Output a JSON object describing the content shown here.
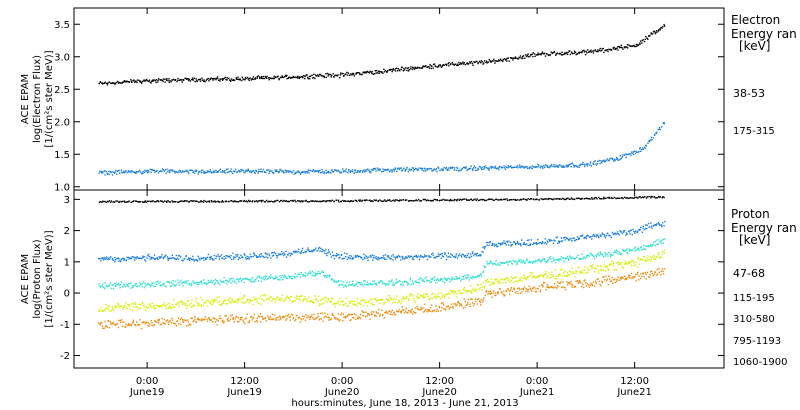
{
  "chart_data": [
    {
      "type": "scatter",
      "panel": "electron",
      "ylabel": [
        "ACE EPAM",
        "log(Electron Flux)",
        "[1/(cm²s ster MeV)]"
      ],
      "ylim": [
        0.95,
        3.75
      ],
      "yticks": [
        "1.0",
        "1.5",
        "2.0",
        "2.5",
        "3.0",
        "3.5"
      ],
      "legend_title": [
        "Electron",
        "Energy ran",
        "[keV]"
      ],
      "series": [
        {
          "name": "38-53",
          "color": "#000000",
          "points": [
            [
              -6,
              2.6
            ],
            [
              0,
              2.64
            ],
            [
              6,
              2.66
            ],
            [
              12,
              2.67
            ],
            [
              18,
              2.7
            ],
            [
              24,
              2.73
            ],
            [
              30,
              2.8
            ],
            [
              36,
              2.88
            ],
            [
              42,
              2.93
            ],
            [
              48,
              3.05
            ],
            [
              54,
              3.08
            ],
            [
              60,
              3.18
            ],
            [
              62,
              3.35
            ],
            [
              63.7,
              3.5
            ]
          ]
        },
        {
          "name": "175-315",
          "color": "#1a7fdc",
          "points": [
            [
              -6,
              1.22
            ],
            [
              0,
              1.25
            ],
            [
              6,
              1.24
            ],
            [
              12,
              1.25
            ],
            [
              18,
              1.24
            ],
            [
              24,
              1.25
            ],
            [
              30,
              1.27
            ],
            [
              36,
              1.28
            ],
            [
              42,
              1.3
            ],
            [
              48,
              1.32
            ],
            [
              54,
              1.35
            ],
            [
              58,
              1.45
            ],
            [
              61,
              1.6
            ],
            [
              63.7,
              2.0
            ]
          ]
        }
      ]
    },
    {
      "type": "scatter",
      "panel": "proton",
      "ylabel": [
        "ACE EPAM",
        "log(Proton Flux)",
        "[1/(cm²s ster MeV)]"
      ],
      "ylim": [
        -2.4,
        3.3
      ],
      "yticks": [
        "-2",
        "-1",
        "0",
        "1",
        "2",
        "3"
      ],
      "legend_title": [
        "Proton",
        "Energy ran",
        "[keV]"
      ],
      "series": [
        {
          "name": "47-68",
          "color": "#000000",
          "points": [
            [
              -6,
              2.95
            ],
            [
              12,
              2.96
            ],
            [
              24,
              2.97
            ],
            [
              36,
              3.0
            ],
            [
              48,
              3.02
            ],
            [
              63.7,
              3.1
            ]
          ]
        },
        {
          "name": "115-195",
          "color": "#1a7fdc",
          "points": [
            [
              -6,
              1.1
            ],
            [
              0,
              1.15
            ],
            [
              6,
              1.15
            ],
            [
              12,
              1.2
            ],
            [
              18,
              1.3
            ],
            [
              21,
              1.45
            ],
            [
              23,
              1.2
            ],
            [
              30,
              1.15
            ],
            [
              36,
              1.2
            ],
            [
              41,
              1.25
            ],
            [
              41.5,
              1.55
            ],
            [
              48,
              1.65
            ],
            [
              54,
              1.8
            ],
            [
              60,
              2.0
            ],
            [
              63.7,
              2.3
            ]
          ]
        },
        {
          "name": "310-580",
          "color": "#2ee0d0",
          "points": [
            [
              -6,
              0.25
            ],
            [
              0,
              0.3
            ],
            [
              6,
              0.35
            ],
            [
              12,
              0.45
            ],
            [
              18,
              0.55
            ],
            [
              21,
              0.7
            ],
            [
              24,
              0.3
            ],
            [
              30,
              0.35
            ],
            [
              36,
              0.45
            ],
            [
              41,
              0.55
            ],
            [
              41.5,
              0.95
            ],
            [
              48,
              1.05
            ],
            [
              54,
              1.2
            ],
            [
              60,
              1.4
            ],
            [
              63.7,
              1.7
            ]
          ]
        },
        {
          "name": "795-1193",
          "color": "#d4ee00",
          "points": [
            [
              -6,
              -0.45
            ],
            [
              0,
              -0.4
            ],
            [
              6,
              -0.3
            ],
            [
              12,
              -0.2
            ],
            [
              18,
              -0.15
            ],
            [
              24,
              -0.3
            ],
            [
              30,
              -0.2
            ],
            [
              36,
              -0.05
            ],
            [
              41,
              0.15
            ],
            [
              41.5,
              0.35
            ],
            [
              48,
              0.55
            ],
            [
              54,
              0.75
            ],
            [
              60,
              1.0
            ],
            [
              63.7,
              1.3
            ]
          ]
        },
        {
          "name": "1060-1900",
          "color": "#ee8a0a",
          "points": [
            [
              -6,
              -1.0
            ],
            [
              0,
              -0.95
            ],
            [
              6,
              -0.85
            ],
            [
              12,
              -0.8
            ],
            [
              18,
              -0.75
            ],
            [
              24,
              -0.75
            ],
            [
              30,
              -0.6
            ],
            [
              36,
              -0.45
            ],
            [
              41,
              -0.25
            ],
            [
              41.5,
              -0.05
            ],
            [
              48,
              0.2
            ],
            [
              54,
              0.35
            ],
            [
              60,
              0.55
            ],
            [
              63.7,
              0.75
            ]
          ]
        }
      ]
    }
  ],
  "x_axis": {
    "range_hours": [
      -9,
      71
    ],
    "tick_times": [
      "0:00",
      "12:00",
      "0:00",
      "12:00",
      "0:00",
      "12:00"
    ],
    "tick_dates": [
      "June19",
      "June19",
      "June20",
      "June20",
      "June21",
      "June21"
    ],
    "tick_hours": [
      0,
      12,
      24,
      36,
      48,
      60
    ],
    "xlabel": "hours:minutes, June 18, 2013 - June 21, 2013"
  }
}
